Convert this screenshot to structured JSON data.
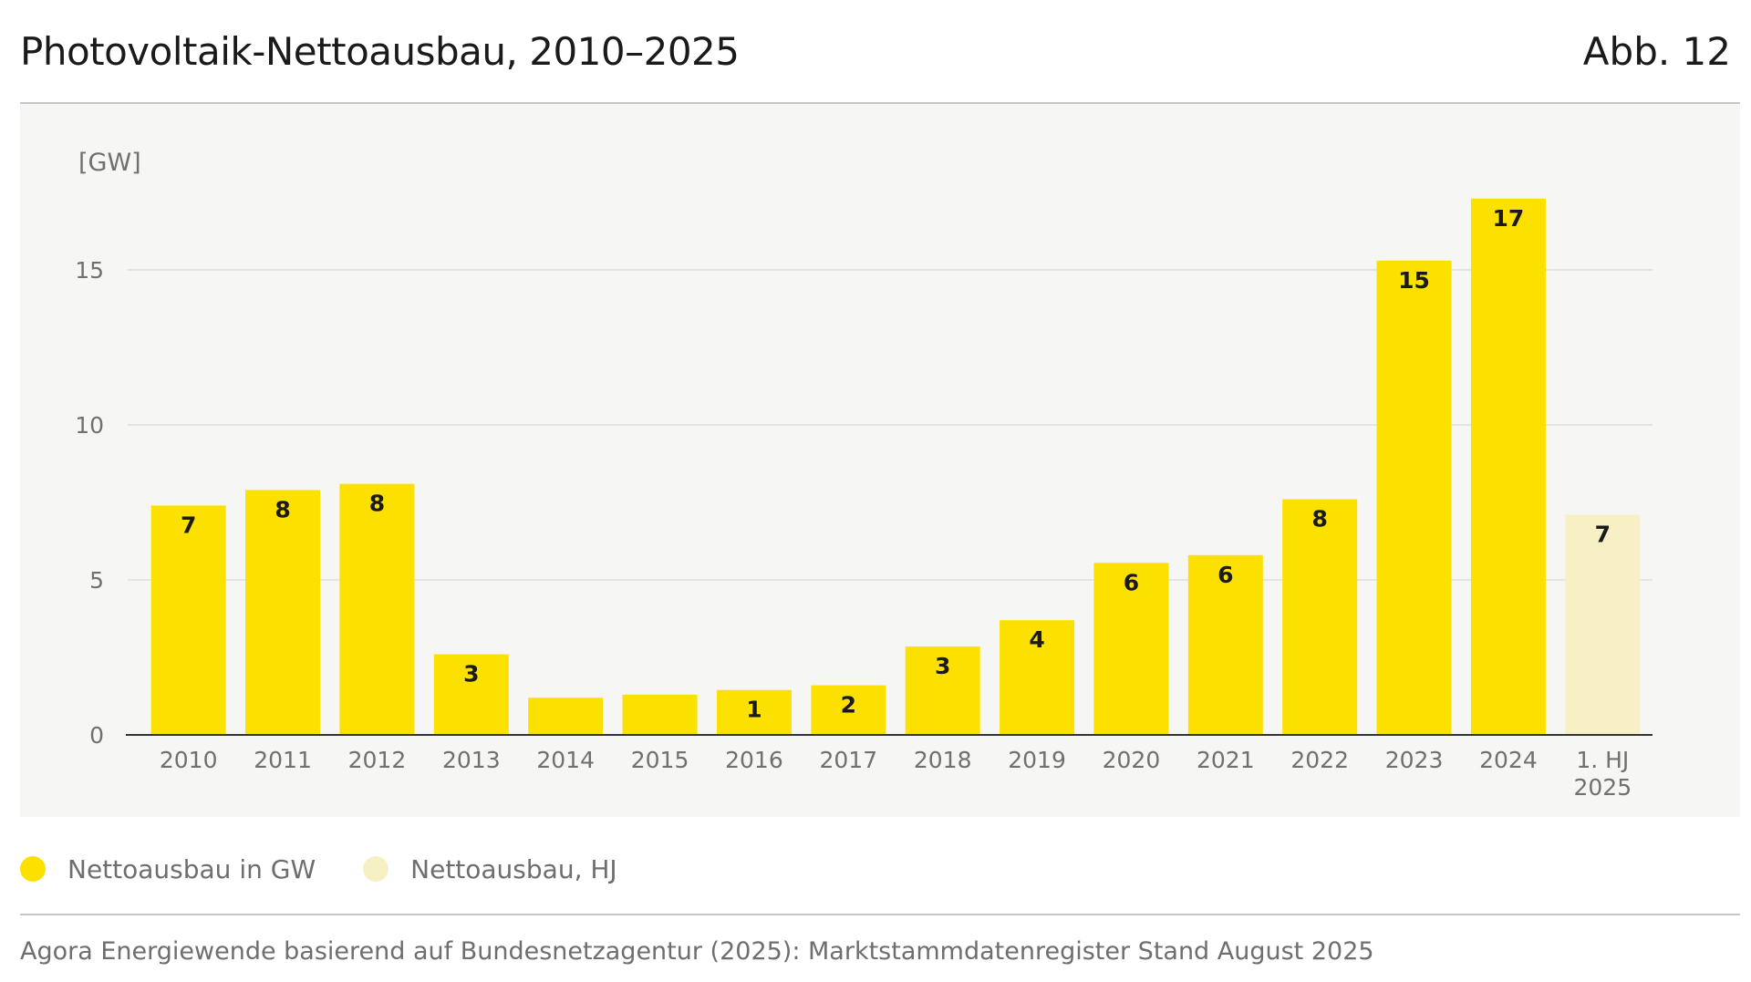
{
  "header": {
    "title": "Photovoltaik-Nettoausbau, 2010–2025",
    "figure_number": "Abb. 12"
  },
  "colors": {
    "primary_bar": "#fce100",
    "half_year_bar": "#f7f0c4",
    "panel_background": "#f6f6f5",
    "gridline": "#e4e4e4",
    "axis": "#333333",
    "tick_text": "#707070"
  },
  "chart_data": {
    "type": "bar",
    "title": "Photovoltaik-Nettoausbau, 2010–2025",
    "ylabel": "[GW]",
    "xlabel": "",
    "ylim": [
      0,
      18
    ],
    "yticks": [
      0,
      5,
      10,
      15
    ],
    "grid": true,
    "categories": [
      "2010",
      "2011",
      "2012",
      "2013",
      "2014",
      "2015",
      "2016",
      "2017",
      "2018",
      "2019",
      "2020",
      "2021",
      "2022",
      "2023",
      "2024",
      "1. HJ\n2025"
    ],
    "series": [
      {
        "name": "Nettoausbau in GW",
        "values": [
          7.4,
          7.9,
          8.1,
          2.6,
          1.2,
          1.3,
          1.45,
          1.6,
          2.85,
          3.7,
          5.55,
          5.8,
          7.6,
          15.3,
          17.3,
          null
        ]
      },
      {
        "name": "Nettoausbau, HJ",
        "values": [
          null,
          null,
          null,
          null,
          null,
          null,
          null,
          null,
          null,
          null,
          null,
          null,
          null,
          null,
          null,
          7.1
        ]
      }
    ],
    "data_labels": [
      "7",
      "8",
      "8",
      "3",
      "",
      "",
      "1",
      "2",
      "3",
      "4",
      "6",
      "6",
      "8",
      "15",
      "17",
      "7"
    ],
    "legend": [
      {
        "label": "Nettoausbau in GW",
        "color": "#fce100"
      },
      {
        "label": "Nettoausbau, HJ",
        "color": "#f7f0c4"
      }
    ],
    "legend_position": "bottom-left"
  },
  "footer": {
    "source": "Agora Energiewende basierend auf Bundesnetzagentur (2025): Marktstammdatenregister Stand August 2025"
  }
}
